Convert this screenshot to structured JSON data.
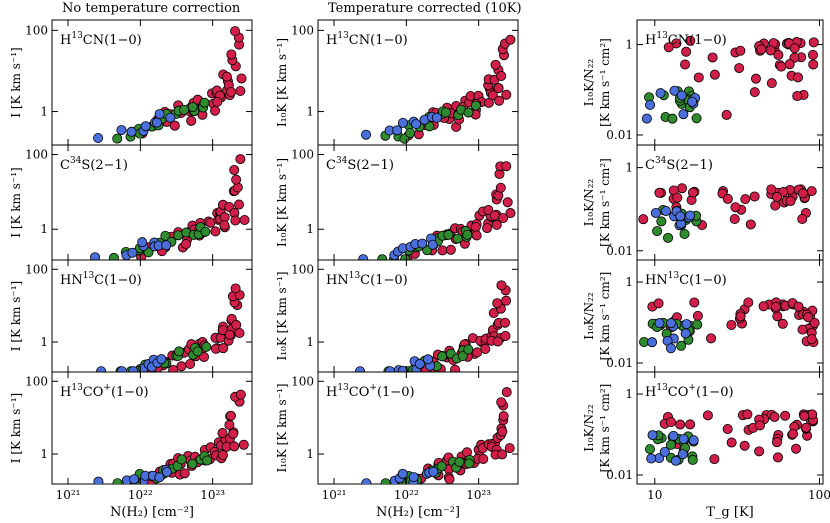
{
  "colors": {
    "red": "#d21f4a",
    "green": "#2e8b2e",
    "blue": "#4a6fdc",
    "frame": "#000000"
  },
  "column_titles": [
    "No temperature correction",
    "Temperature corrected (10K)",
    ""
  ],
  "chart_data": {
    "type": "scatter",
    "layout": "4 rows x 3 columns of panels",
    "rows": [
      {
        "molecule": "H13CN(1-0)",
        "label_parts": [
          "H",
          "13",
          "CN(1−0)"
        ]
      },
      {
        "molecule": "C34S(2-1)",
        "label_parts": [
          "C",
          "34",
          "S(2−1)"
        ]
      },
      {
        "molecule": "HN13C(1-0)",
        "label_parts": [
          "HN",
          "13",
          "C(1−0)"
        ]
      },
      {
        "molecule": "H13CO+(1-0)",
        "label_parts": [
          "H",
          "13",
          "CO",
          "+",
          "(1−0)"
        ]
      }
    ],
    "columns": [
      {
        "title": "No temperature correction",
        "x_label": "N(H₂)  [cm⁻²]",
        "y_label": "I [K km s⁻¹]",
        "x_scale": "log",
        "xlim": [
          6e+20,
          3.5e+23
        ],
        "x_ticks": [
          "10²¹",
          "10²²",
          "10²³"
        ],
        "x_tick_values": [
          1e+21,
          1e+22,
          1e+23
        ],
        "y_scale": "log",
        "ylim": [
          0.15,
          180
        ],
        "y_ticks": [
          "1",
          "100"
        ],
        "y_tick_values": [
          1,
          100
        ]
      },
      {
        "title": "Temperature corrected (10K)",
        "x_label": "N(H₂)  [cm⁻²]",
        "y_label": "I₁₀K  [K km s⁻¹]",
        "x_scale": "log",
        "xlim": [
          6e+20,
          3.5e+23
        ],
        "x_ticks": [
          "10²¹",
          "10²²",
          "10²³"
        ],
        "x_tick_values": [
          1e+21,
          1e+22,
          1e+23
        ],
        "y_scale": "log",
        "ylim": [
          0.15,
          180
        ],
        "y_ticks": [
          "1",
          "100"
        ],
        "y_tick_values": [
          1,
          100
        ]
      },
      {
        "title": "",
        "x_label": "T_g  [K]",
        "y_label_top": "I₁₀K/N₂₂",
        "y_label_bottom": "[K km s⁻¹ cm²]",
        "x_scale": "log",
        "xlim": [
          7.8,
          105
        ],
        "x_ticks": [
          "10",
          "100"
        ],
        "x_tick_values": [
          10,
          100
        ],
        "y_scale": "log",
        "ylim": [
          0.006,
          3.5
        ],
        "y_ticks": [
          "0.01",
          "1"
        ],
        "y_tick_values": [
          0.01,
          1
        ]
      }
    ],
    "series": [
      {
        "name": "",
        "color": "#d21f4a",
        "points_NH2_I": [
          [
            2.1e+22,
            0.7
          ],
          [
            2.5e+22,
            0.85
          ],
          [
            3e+22,
            0.95
          ],
          [
            3.4e+22,
            1.1
          ],
          [
            4e+22,
            0.9
          ],
          [
            4.5e+22,
            1.3
          ],
          [
            5e+22,
            1.0
          ],
          [
            5.5e+22,
            1.5
          ],
          [
            6e+22,
            1.7
          ],
          [
            6.5e+22,
            1.2
          ],
          [
            7e+22,
            2.1
          ],
          [
            8e+22,
            1.6
          ],
          [
            9e+22,
            2.5
          ],
          [
            1e+23,
            2.0
          ],
          [
            1.1e+23,
            3.2
          ],
          [
            1.2e+23,
            2.6
          ],
          [
            1.3e+23,
            4.0
          ],
          [
            1.4e+23,
            3.0
          ],
          [
            1.5e+23,
            5.0
          ],
          [
            1.6e+23,
            6.5
          ],
          [
            1.7e+23,
            4.2
          ],
          [
            1.8e+23,
            8.0
          ],
          [
            1.9e+23,
            12
          ],
          [
            2e+23,
            18
          ],
          [
            2.1e+23,
            25
          ],
          [
            2.2e+23,
            40
          ],
          [
            2.3e+23,
            60
          ],
          [
            2.4e+23,
            90
          ],
          [
            2.2e+23,
            7
          ],
          [
            1.8e+23,
            3.5
          ],
          [
            2.5e+22,
            0.45
          ],
          [
            3.5e+22,
            0.6
          ],
          [
            4.5e+22,
            0.55
          ],
          [
            6e+22,
            0.9
          ],
          [
            8e+22,
            1.1
          ],
          [
            1e+23,
            1.4
          ],
          [
            1.3e+23,
            1.8
          ],
          [
            1.6e+23,
            2.2
          ],
          [
            2e+23,
            2.8
          ],
          [
            2.5e+23,
            3.5
          ],
          [
            1.2e+22,
            0.3
          ],
          [
            1.5e+22,
            0.4
          ],
          [
            1.8e+22,
            0.5
          ]
        ]
      },
      {
        "name": "",
        "color": "#2e8b2e",
        "points_NH2_I": [
          [
            5e+21,
            0.22
          ],
          [
            7e+21,
            0.28
          ],
          [
            9e+21,
            0.32
          ],
          [
            1.1e+22,
            0.4
          ],
          [
            1.3e+22,
            0.45
          ],
          [
            1.6e+22,
            0.55
          ],
          [
            2e+22,
            0.6
          ],
          [
            2.4e+22,
            0.75
          ],
          [
            2.8e+22,
            0.8
          ],
          [
            3.2e+22,
            0.9
          ],
          [
            4e+22,
            1.0
          ],
          [
            5e+22,
            1.1
          ],
          [
            6e+22,
            1.2
          ],
          [
            7e+22,
            1.3
          ],
          [
            8e+22,
            1.4
          ]
        ]
      },
      {
        "name": "",
        "color": "#4a6fdc",
        "points_NH2_I": [
          [
            2.5e+21,
            0.25
          ],
          [
            6e+21,
            0.3
          ],
          [
            8e+21,
            0.38
          ],
          [
            1e+22,
            0.45
          ],
          [
            1.2e+22,
            0.5
          ],
          [
            1.4e+22,
            0.6
          ],
          [
            1.7e+22,
            0.55
          ],
          [
            2e+22,
            0.7
          ],
          [
            2.3e+22,
            0.65
          ]
        ]
      }
    ]
  }
}
